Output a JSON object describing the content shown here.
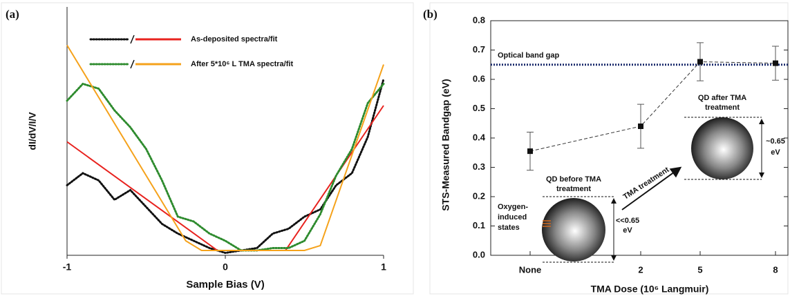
{
  "chart_data": [
    {
      "type": "line",
      "panel_label": "(a)",
      "xlabel": "Sample Bias (V)",
      "ylabel": "dI/dV/I/V",
      "xlim": [
        -1,
        1
      ],
      "xticks": [
        -1,
        0,
        1
      ],
      "ylim": [
        0,
        1
      ],
      "x": [
        -1,
        -0.9,
        -0.8,
        -0.7,
        -0.6,
        -0.5,
        -0.4,
        -0.3,
        -0.2,
        -0.1,
        0,
        0.1,
        0.2,
        0.3,
        0.4,
        0.5,
        0.6,
        0.7,
        0.8,
        0.9,
        1
      ],
      "series": [
        {
          "name": "As-deposited spectra/fit",
          "spectra_color": "#111111",
          "fit_color": "#e8221e",
          "spectra": [
            0.29,
            0.34,
            0.31,
            0.23,
            0.27,
            0.2,
            0.13,
            0.09,
            0.06,
            0.03,
            0.01,
            0.02,
            0.03,
            0.09,
            0.11,
            0.16,
            0.19,
            0.29,
            0.34,
            0.49,
            0.73
          ],
          "fit_x": [
            -1,
            -0.05,
            0.38,
            1
          ],
          "fit": [
            0.47,
            0.02,
            0.02,
            0.62
          ]
        },
        {
          "name": "After 5*10⁶ L TMA spectra/fit",
          "spectra_color": "#2e8b2e",
          "fit_color": "#f5a21b",
          "spectra": [
            0.64,
            0.71,
            0.69,
            0.6,
            0.53,
            0.44,
            0.31,
            0.16,
            0.14,
            0.09,
            0.06,
            0.02,
            0.02,
            0.03,
            0.03,
            0.06,
            0.17,
            0.33,
            0.44,
            0.63,
            0.71
          ],
          "fit_x": [
            -1,
            -0.25,
            -0.15,
            0.5,
            0.6,
            1
          ],
          "fit": [
            0.87,
            0.06,
            0.02,
            0.02,
            0.04,
            0.79
          ]
        }
      ]
    },
    {
      "type": "errorbar",
      "panel_label": "(b)",
      "xlabel": "TMA Dose (10⁶ Langmuir)",
      "ylabel": "STS-Measured Bandgap (eV)",
      "categories": [
        "None",
        "2",
        "5",
        "8"
      ],
      "values": [
        0.355,
        0.44,
        0.66,
        0.655
      ],
      "errors": [
        0.065,
        0.075,
        0.065,
        0.058
      ],
      "color": "#111111",
      "ylim": [
        0,
        0.8
      ],
      "yticks": [
        {
          "value": 0,
          "label": "0.0"
        },
        0.1,
        0.2,
        0.3,
        0.4,
        0.5,
        0.6,
        0.7,
        0.8
      ],
      "reference_line": {
        "value": 0.65,
        "label": "Optical band gap",
        "color": "#1a2a6c"
      },
      "annotations": {
        "before": [
          "QD before TMA",
          "treatment"
        ],
        "after": [
          "QD after TMA",
          "treatment"
        ],
        "arrow": "TMA treatment",
        "before_gap": [
          "<<0.65",
          "eV"
        ],
        "after_gap": [
          "~0.65",
          "eV"
        ],
        "oxygen": [
          "Oxygen-",
          "induced",
          "states"
        ]
      }
    }
  ]
}
